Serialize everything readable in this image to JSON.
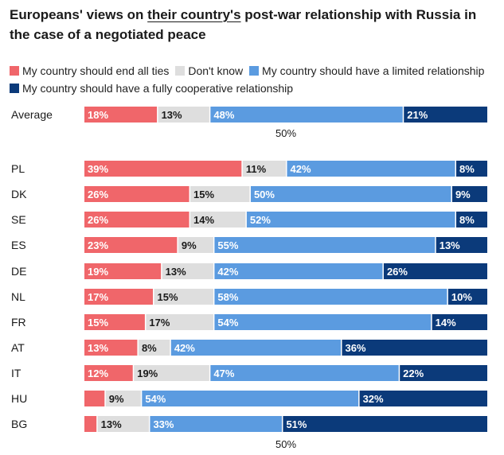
{
  "chart_data": {
    "type": "bar",
    "orientation": "horizontal",
    "stacked": true,
    "normalized": true,
    "title_parts": [
      "Europeans' views on ",
      "their country's",
      " post-war relationship with Russia in the case of a negotiated peace"
    ],
    "title": "Europeans' views on their country's post-war relationship with Russia in the case of a negotiated peace",
    "legend_position": "top",
    "midpoint_label": "50%",
    "xlim": [
      0,
      100
    ],
    "colors": {
      "end_ties": "#f0666a",
      "dont_know": "#dedede",
      "limited": "#5b9be0",
      "cooperative": "#0b3a7a"
    },
    "series": [
      {
        "key": "end_ties",
        "name": "My country should end all ties",
        "label_color": "#ffffff"
      },
      {
        "key": "dont_know",
        "name": "Don't know",
        "label_color": "#1a1a1a"
      },
      {
        "key": "limited",
        "name": "My country should have a limited relationship",
        "label_color": "#ffffff"
      },
      {
        "key": "cooperative",
        "name": "My country should have a fully cooperative relationship",
        "label_color": "#ffffff"
      }
    ],
    "rows": [
      {
        "category": "Average",
        "values": [
          18,
          13,
          48,
          21
        ],
        "labels": [
          "18%",
          "13%",
          "48%",
          "21%"
        ]
      },
      {
        "category": "PL",
        "values": [
          39,
          11,
          42,
          8
        ],
        "labels": [
          "39%",
          "11%",
          "42%",
          "8%"
        ]
      },
      {
        "category": "DK",
        "values": [
          26,
          15,
          50,
          9
        ],
        "labels": [
          "26%",
          "15%",
          "50%",
          "9%"
        ]
      },
      {
        "category": "SE",
        "values": [
          26,
          14,
          52,
          8
        ],
        "labels": [
          "26%",
          "14%",
          "52%",
          "8%"
        ]
      },
      {
        "category": "ES",
        "values": [
          23,
          9,
          55,
          13
        ],
        "labels": [
          "23%",
          "9%",
          "55%",
          "13%"
        ]
      },
      {
        "category": "DE",
        "values": [
          19,
          13,
          42,
          26
        ],
        "labels": [
          "19%",
          "13%",
          "42%",
          "26%"
        ]
      },
      {
        "category": "NL",
        "values": [
          17,
          15,
          58,
          10
        ],
        "labels": [
          "17%",
          "15%",
          "58%",
          "10%"
        ]
      },
      {
        "category": "FR",
        "values": [
          15,
          17,
          54,
          14
        ],
        "labels": [
          "15%",
          "17%",
          "54%",
          "14%"
        ]
      },
      {
        "category": "AT",
        "values": [
          13,
          8,
          42,
          36
        ],
        "labels": [
          "13%",
          "8%",
          "42%",
          "36%"
        ]
      },
      {
        "category": "IT",
        "values": [
          12,
          19,
          47,
          22
        ],
        "labels": [
          "12%",
          "19%",
          "47%",
          "22%"
        ]
      },
      {
        "category": "HU",
        "values": [
          5,
          9,
          54,
          32
        ],
        "labels": [
          "",
          "9%",
          "54%",
          "32%"
        ]
      },
      {
        "category": "BG",
        "values": [
          3,
          13,
          33,
          51
        ],
        "labels": [
          "",
          "13%",
          "33%",
          "51%"
        ]
      }
    ]
  }
}
